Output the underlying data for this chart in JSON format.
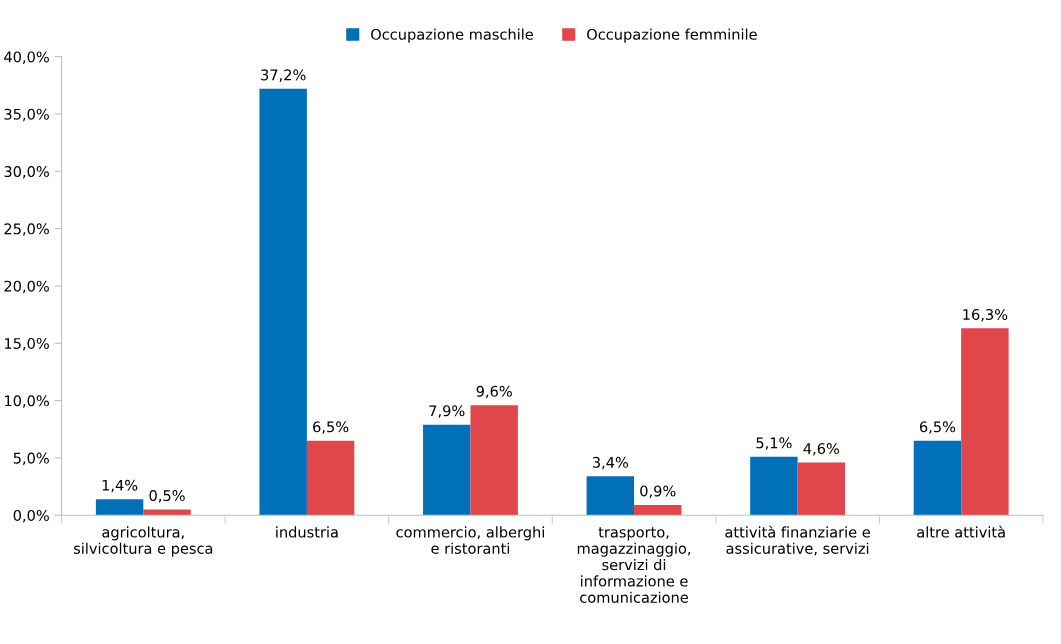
{
  "chart_data": {
    "type": "bar",
    "categories": [
      "agricoltura,\nsilvicoltura e pesca",
      "industria",
      "commercio, alberghi\ne ristoranti",
      "trasporto,\nmagazzinaggio,\nservizi di\ninformazione e\ncomunicazione",
      "attività finanziarie e\nassicurative, servizi",
      "altre attività"
    ],
    "series": [
      {
        "name": "Occupazione maschile",
        "color": "#0070b8",
        "values": [
          1.4,
          37.2,
          7.9,
          3.4,
          5.1,
          6.5
        ],
        "value_labels": [
          "1,4%",
          "37,2%",
          "7,9%",
          "3,4%",
          "5,1%",
          "6,5%"
        ]
      },
      {
        "name": "Occupazione femminile",
        "color": "#e0464a",
        "values": [
          0.5,
          6.5,
          9.6,
          0.9,
          4.6,
          16.3
        ],
        "value_labels": [
          "0,5%",
          "6,5%",
          "9,6%",
          "0,9%",
          "4,6%",
          "16,3%"
        ]
      }
    ],
    "ylim": [
      0,
      40
    ],
    "yticks": [
      {
        "value": 0,
        "label": "0,0%"
      },
      {
        "value": 5,
        "label": "5,0%"
      },
      {
        "value": 10,
        "label": "10,0%"
      },
      {
        "value": 15,
        "label": "15,0%"
      },
      {
        "value": 20,
        "label": "20,0%"
      },
      {
        "value": 25,
        "label": "25,0%"
      },
      {
        "value": 30,
        "label": "30,0%"
      },
      {
        "value": 35,
        "label": "35,0%"
      },
      {
        "value": 40,
        "label": "40,0%"
      }
    ],
    "grid": false,
    "legend": "top"
  }
}
